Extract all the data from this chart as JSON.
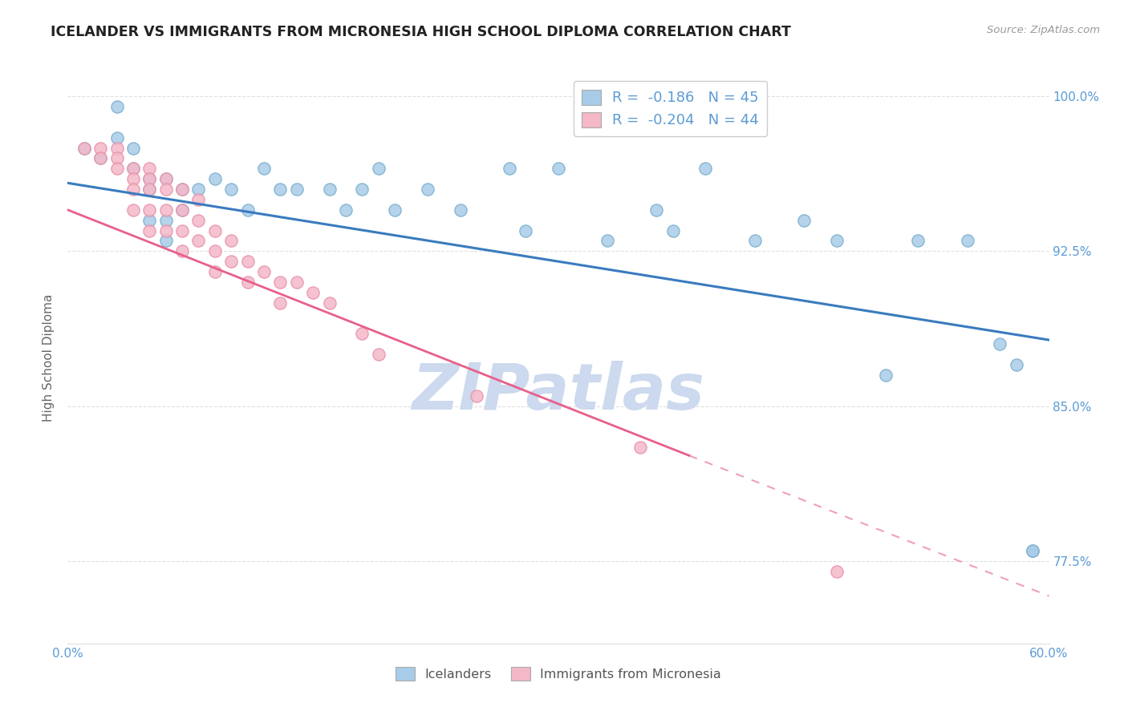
{
  "title": "ICELANDER VS IMMIGRANTS FROM MICRONESIA HIGH SCHOOL DIPLOMA CORRELATION CHART",
  "source_text": "Source: ZipAtlas.com",
  "ylabel": "High School Diploma",
  "watermark": "ZIPatlas",
  "xlim": [
    0.0,
    0.6
  ],
  "ylim": [
    0.735,
    1.012
  ],
  "xticks": [
    0.0,
    0.1,
    0.2,
    0.3,
    0.4,
    0.5,
    0.6
  ],
  "xticklabels": [
    "0.0%",
    "",
    "",
    "",
    "",
    "",
    "60.0%"
  ],
  "ytick_positions": [
    0.775,
    0.85,
    0.925,
    1.0
  ],
  "ytick_labels": [
    "77.5%",
    "85.0%",
    "92.5%",
    "100.0%"
  ],
  "legend_r1": "R =  -0.186",
  "legend_n1": "N = 45",
  "legend_r2": "R =  -0.204",
  "legend_n2": "N = 44",
  "legend_label1": "Icelanders",
  "legend_label2": "Immigrants from Micronesia",
  "blue_color": "#a8cce8",
  "pink_color": "#f4b8c8",
  "blue_edge_color": "#7aaecc",
  "pink_edge_color": "#e890aa",
  "blue_line_color": "#3a7bbf",
  "pink_line_color": "#e8608a",
  "axis_color": "#5b9bd5",
  "grid_color": "#cccccc",
  "watermark_color": "#ccd9ee",
  "blue_scatter": {
    "x": [
      0.01,
      0.02,
      0.03,
      0.03,
      0.04,
      0.04,
      0.05,
      0.05,
      0.05,
      0.06,
      0.06,
      0.06,
      0.07,
      0.07,
      0.08,
      0.09,
      0.1,
      0.11,
      0.12,
      0.13,
      0.14,
      0.16,
      0.17,
      0.18,
      0.19,
      0.2,
      0.22,
      0.24,
      0.27,
      0.28,
      0.3,
      0.33,
      0.36,
      0.37,
      0.39,
      0.42,
      0.45,
      0.47,
      0.5,
      0.52,
      0.55,
      0.57,
      0.58,
      0.59,
      0.59
    ],
    "y": [
      0.975,
      0.97,
      0.995,
      0.98,
      0.975,
      0.965,
      0.96,
      0.955,
      0.94,
      0.96,
      0.94,
      0.93,
      0.955,
      0.945,
      0.955,
      0.96,
      0.955,
      0.945,
      0.965,
      0.955,
      0.955,
      0.955,
      0.945,
      0.955,
      0.965,
      0.945,
      0.955,
      0.945,
      0.965,
      0.935,
      0.965,
      0.93,
      0.945,
      0.935,
      0.965,
      0.93,
      0.94,
      0.93,
      0.865,
      0.93,
      0.93,
      0.88,
      0.87,
      0.78,
      0.78
    ]
  },
  "pink_scatter": {
    "x": [
      0.01,
      0.02,
      0.02,
      0.03,
      0.03,
      0.03,
      0.04,
      0.04,
      0.04,
      0.04,
      0.05,
      0.05,
      0.05,
      0.05,
      0.05,
      0.06,
      0.06,
      0.06,
      0.06,
      0.07,
      0.07,
      0.07,
      0.07,
      0.08,
      0.08,
      0.08,
      0.09,
      0.09,
      0.09,
      0.1,
      0.1,
      0.11,
      0.11,
      0.12,
      0.13,
      0.13,
      0.14,
      0.15,
      0.16,
      0.18,
      0.19,
      0.25,
      0.35,
      0.47
    ],
    "y": [
      0.975,
      0.975,
      0.97,
      0.975,
      0.97,
      0.965,
      0.965,
      0.96,
      0.955,
      0.945,
      0.965,
      0.96,
      0.955,
      0.945,
      0.935,
      0.96,
      0.955,
      0.945,
      0.935,
      0.955,
      0.945,
      0.935,
      0.925,
      0.95,
      0.94,
      0.93,
      0.935,
      0.925,
      0.915,
      0.93,
      0.92,
      0.92,
      0.91,
      0.915,
      0.91,
      0.9,
      0.91,
      0.905,
      0.9,
      0.885,
      0.875,
      0.855,
      0.83,
      0.77
    ]
  },
  "blue_line": {
    "x0": 0.0,
    "x1": 0.6,
    "y0": 0.958,
    "y1": 0.882
  },
  "pink_line_solid": {
    "x0": 0.0,
    "x1": 0.38,
    "y0": 0.945,
    "y1": 0.826
  },
  "pink_line_dashed": {
    "x0": 0.38,
    "x1": 0.6,
    "y0": 0.826,
    "y1": 0.758
  }
}
